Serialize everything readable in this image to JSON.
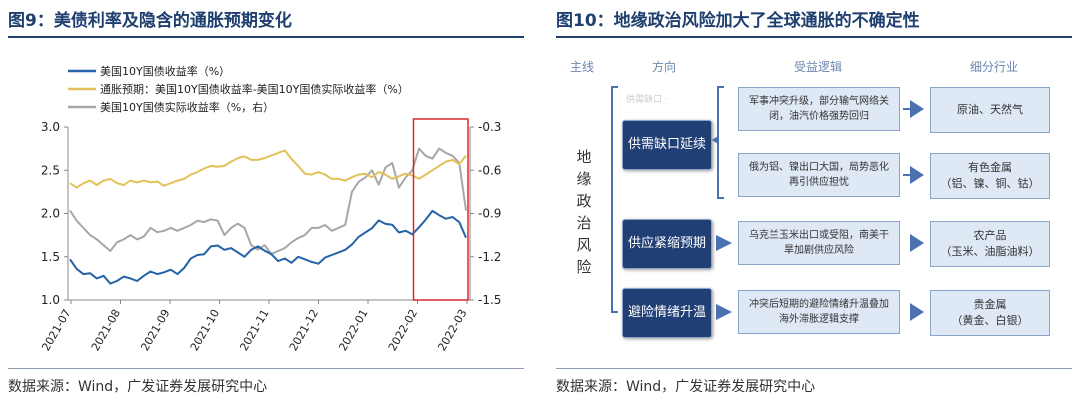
{
  "left": {
    "title": "图9：美债利率及隐含的通胀预期变化",
    "source": "数据来源：Wind，广发证券发展研究中心"
  },
  "right": {
    "title": "图10：地缘政治风险加大了全球通胀的不确定性",
    "source": "数据来源：Wind，广发证券发展研究中心",
    "headers": {
      "main": "主线",
      "direction": "方向",
      "logic": "受益逻辑",
      "industry": "细分行业"
    },
    "mainline": "地缘政治风险",
    "faint_text": "供需缺口 ·",
    "directions": [
      {
        "label": "供需缺口延续"
      },
      {
        "label": "供应紧缩预期"
      },
      {
        "label": "避险情绪升温"
      }
    ],
    "logic": [
      "军事冲突升级，部分输气网络关闭，油汽价格强势回归",
      "俄为铝、镍出口大国，局势恶化再引供应担忧",
      "乌克兰玉米出口或受阻，南美干旱加剧供应风险",
      "冲突后短期的避险情绪升温叠加海外滞胀逻辑支撑"
    ],
    "industries": [
      {
        "name": "原油、天然气",
        "detail": ""
      },
      {
        "name": "有色金属",
        "detail": "（铝、镍、铜、钴）"
      },
      {
        "name": "农产品",
        "detail": "（玉米、油脂油料）"
      },
      {
        "name": "贵金属",
        "detail": "（黄金、白银）"
      }
    ],
    "colors": {
      "dark_box": "#1f3f75",
      "light_box": "#dfe8f5",
      "arrow": "#4a72b0"
    }
  },
  "chart_data": {
    "type": "line",
    "legend": [
      "美国10Y国债收益率（%）",
      "通胀预期：美国10Y国债收益率-美国10Y国债实际收益率（%）",
      "美国10Y国债实际收益率（%，右）"
    ],
    "x_ticks": [
      "2021-07",
      "2021-08",
      "2021-09",
      "2021-10",
      "2021-11",
      "2021-12",
      "2022-01",
      "2022-02",
      "2022-03"
    ],
    "y_left": {
      "ticks": [
        "3.0",
        "2.5",
        "2.0",
        "1.5",
        "1.0"
      ],
      "range": [
        1.0,
        3.0
      ]
    },
    "y_right": {
      "ticks": [
        "-0.3",
        "-0.6",
        "-0.9",
        "-1.2",
        "-1.5"
      ],
      "range": [
        -1.5,
        -0.3
      ]
    },
    "series": [
      {
        "name": "美国10Y国债收益率（%）",
        "color": "#2563a8",
        "axis": "left",
        "values": [
          1.47,
          1.36,
          1.3,
          1.31,
          1.25,
          1.28,
          1.19,
          1.22,
          1.27,
          1.25,
          1.22,
          1.28,
          1.33,
          1.3,
          1.32,
          1.35,
          1.3,
          1.37,
          1.48,
          1.52,
          1.53,
          1.62,
          1.63,
          1.58,
          1.6,
          1.55,
          1.5,
          1.58,
          1.62,
          1.57,
          1.53,
          1.45,
          1.48,
          1.43,
          1.5,
          1.47,
          1.44,
          1.42,
          1.49,
          1.52,
          1.55,
          1.58,
          1.64,
          1.73,
          1.78,
          1.83,
          1.92,
          1.88,
          1.87,
          1.78,
          1.8,
          1.76,
          1.84,
          1.93,
          2.03,
          1.98,
          1.94,
          1.96,
          1.9,
          1.72
        ]
      },
      {
        "name": "通胀预期：美国10Y国债收益率-美国10Y国债实际收益率（%）",
        "color": "#e3c15a",
        "axis": "left",
        "values": [
          2.35,
          2.3,
          2.35,
          2.38,
          2.33,
          2.38,
          2.4,
          2.35,
          2.33,
          2.38,
          2.36,
          2.38,
          2.36,
          2.37,
          2.32,
          2.35,
          2.38,
          2.4,
          2.45,
          2.48,
          2.52,
          2.55,
          2.54,
          2.55,
          2.6,
          2.64,
          2.66,
          2.62,
          2.62,
          2.64,
          2.67,
          2.7,
          2.73,
          2.63,
          2.55,
          2.46,
          2.45,
          2.48,
          2.45,
          2.4,
          2.4,
          2.38,
          2.42,
          2.45,
          2.46,
          2.42,
          2.48,
          2.45,
          2.4,
          2.43,
          2.46,
          2.44,
          2.4,
          2.45,
          2.5,
          2.55,
          2.6,
          2.62,
          2.57,
          2.67
        ]
      },
      {
        "name": "美国10Y国债实际收益率（%，右）",
        "color": "#a7a7a7",
        "axis": "right",
        "values": [
          -0.88,
          -0.95,
          -1.0,
          -1.05,
          -1.08,
          -1.12,
          -1.16,
          -1.1,
          -1.08,
          -1.05,
          -1.08,
          -1.06,
          -1.0,
          -1.03,
          -1.02,
          -1.0,
          -1.02,
          -1.0,
          -0.98,
          -0.95,
          -0.96,
          -0.94,
          -0.95,
          -1.05,
          -1.0,
          -0.97,
          -1.0,
          -1.12,
          -1.15,
          -1.12,
          -1.18,
          -1.16,
          -1.14,
          -1.1,
          -1.07,
          -1.05,
          -1.0,
          -1.0,
          -0.98,
          -1.02,
          -1.0,
          -0.98,
          -0.75,
          -0.68,
          -0.65,
          -0.6,
          -0.7,
          -0.58,
          -0.55,
          -0.72,
          -0.65,
          -0.6,
          -0.45,
          -0.5,
          -0.52,
          -0.45,
          -0.48,
          -0.5,
          -0.55,
          -0.88
        ]
      }
    ],
    "highlight": {
      "from": "2022-02",
      "to": "2022-03",
      "color": "#d62b2b"
    }
  }
}
